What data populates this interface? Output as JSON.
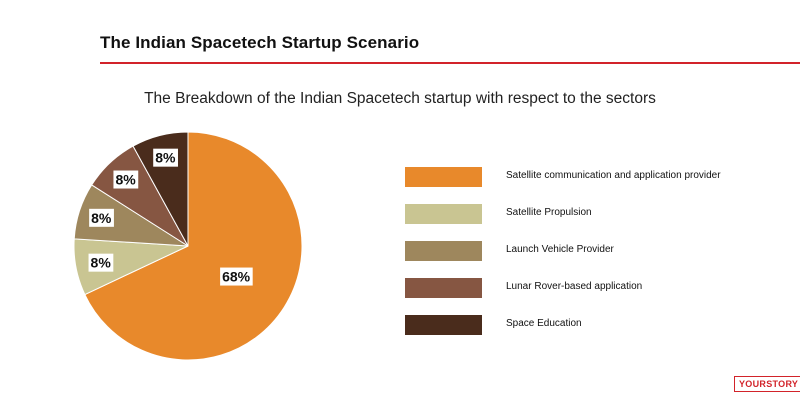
{
  "header": {
    "title": "The Indian Spacetech Startup Scenario"
  },
  "colors": {
    "accent_rule": "#d2232a"
  },
  "brand": {
    "watermark": "YOURSTORY"
  },
  "chart_data": {
    "type": "pie",
    "title": "The Breakdown of the Indian Spacetech startup with respect to the sectors",
    "slices": [
      {
        "name": "Satellite communication and application provider",
        "value": 68,
        "label": "68%",
        "color": "#e8892b"
      },
      {
        "name": "Satellite Propulsion",
        "value": 8,
        "label": "8%",
        "color": "#c9c592"
      },
      {
        "name": "Launch Vehicle Provider",
        "value": 8,
        "label": "8%",
        "color": "#9e875d"
      },
      {
        "name": "Lunar Rover-based application",
        "value": 8,
        "label": "8%",
        "color": "#865642"
      },
      {
        "name": "Space Education",
        "value": 8,
        "label": "8%",
        "color": "#4a2c1c"
      }
    ],
    "legend_position": "right"
  }
}
